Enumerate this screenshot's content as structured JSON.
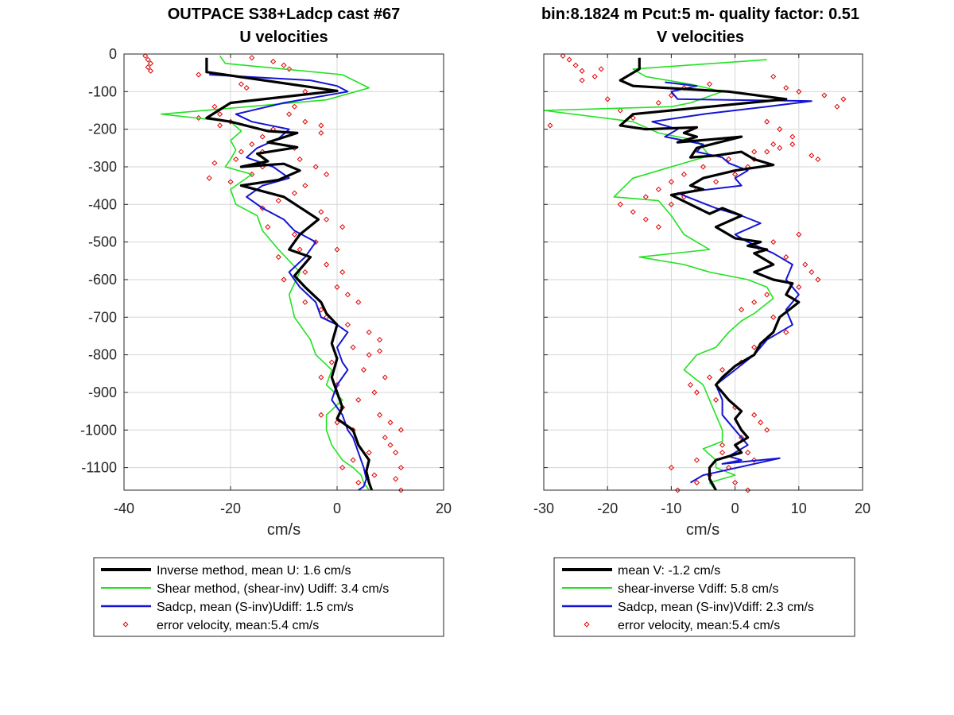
{
  "colors": {
    "inverse": "#000000",
    "shear": "#21e221",
    "sadcp": "#1414d2",
    "error": "#e00000",
    "grid": "#d6d6d6",
    "axis": "#262626"
  },
  "chart_data": [
    {
      "type": "line",
      "title": "OUTPACE S38+Ladcp cast #67",
      "subtitle": "U velocities",
      "xlabel": "cm/s",
      "ylabel": "",
      "xlim": [
        -40,
        20
      ],
      "ylim": [
        -1160,
        0
      ],
      "xticks": [
        -40,
        -20,
        0,
        20
      ],
      "yticks": [
        0,
        -100,
        -200,
        -300,
        -400,
        -500,
        -600,
        -700,
        -800,
        -900,
        -1000,
        -1100
      ],
      "grid": true,
      "legend_position": "below",
      "legend": [
        "Inverse method, mean U:  1.6 cm/s",
        "Shear method, (shear-inv)  Udiff:  3.4 cm/s",
        "Sadcp, mean (S-inv)Udiff: 1.5 cm/s",
        "error velocity, mean:5.4 cm/s"
      ],
      "series": [
        {
          "key": "inverse",
          "style": "line",
          "x": [
            -24.5,
            -24.5,
            0,
            -20,
            -24.5,
            -20,
            -13,
            -7.5,
            -13,
            -7.5,
            -15,
            -13,
            -18,
            -10,
            -7,
            -11,
            -18,
            -10,
            -3.5,
            -7,
            -9,
            -5,
            -8,
            -6,
            -3,
            -2,
            0,
            -1,
            0,
            -1,
            0,
            1,
            0,
            3,
            4,
            6,
            5.5,
            6,
            6.5
          ],
          "y": [
            -10,
            -48,
            -98,
            -130,
            -170,
            -180,
            -205,
            -210,
            -235,
            -248,
            -265,
            -285,
            -300,
            -292,
            -310,
            -335,
            -350,
            -380,
            -440,
            -480,
            -520,
            -540,
            -590,
            -620,
            -660,
            -690,
            -720,
            -770,
            -810,
            -860,
            -900,
            -940,
            -970,
            -1000,
            -1040,
            -1080,
            -1110,
            -1140,
            -1160
          ]
        },
        {
          "key": "shear",
          "style": "line",
          "x": [
            -22,
            -21,
            1,
            6,
            -2,
            -33,
            -20,
            -18,
            -20,
            -19,
            -20,
            -21,
            -16,
            -20,
            -19,
            -15,
            -14,
            -11,
            -7,
            -9,
            -8,
            -5,
            -4,
            -1,
            -2,
            1,
            -2,
            -2,
            -1,
            0,
            1,
            3,
            4.5,
            5,
            5.5,
            6
          ],
          "y": [
            -5,
            -25,
            -55,
            -90,
            -122,
            -160,
            -180,
            -205,
            -230,
            -255,
            -280,
            -300,
            -320,
            -360,
            -400,
            -430,
            -470,
            -520,
            -580,
            -640,
            -700,
            -760,
            -800,
            -840,
            -880,
            -920,
            -960,
            -1000,
            -1040,
            -1060,
            -1080,
            -1100,
            -1120,
            -1140,
            -1150,
            -1160
          ]
        },
        {
          "key": "sadcp",
          "style": "line",
          "x": [
            -24,
            -5,
            0,
            2,
            -10,
            -19,
            -16,
            -9,
            -11,
            -15,
            -17,
            -12,
            -9,
            -14,
            -17,
            -14,
            -10,
            -8,
            -4,
            -6,
            -9,
            -7,
            -4,
            -3,
            0,
            2,
            0,
            1,
            2,
            0,
            -1,
            1,
            2,
            3,
            4,
            5,
            5.5,
            5,
            4
          ],
          "y": [
            -55,
            -70,
            -85,
            -100,
            -130,
            -160,
            -180,
            -200,
            -225,
            -250,
            -275,
            -300,
            -330,
            -350,
            -380,
            -410,
            -440,
            -470,
            -500,
            -540,
            -580,
            -620,
            -660,
            -700,
            -720,
            -740,
            -780,
            -820,
            -840,
            -880,
            -920,
            -960,
            -1000,
            -1020,
            -1060,
            -1100,
            -1130,
            -1150,
            -1160
          ]
        },
        {
          "key": "error",
          "style": "markers",
          "x": [
            -36,
            -35.5,
            -35,
            -35.5,
            -35,
            -26,
            -16,
            -12,
            -10,
            -9,
            -18,
            -17,
            -6,
            -23,
            -22,
            -20,
            -8,
            -26,
            -22,
            -9,
            -12,
            -6,
            -3,
            -3,
            -14,
            -16,
            -18,
            -19,
            -14,
            -16,
            -23,
            -24,
            -20,
            -8,
            -14,
            -7,
            -4,
            -2,
            -6,
            -8,
            -11,
            -14,
            -3,
            -2,
            -13,
            -8,
            1,
            -4,
            -7,
            -11,
            0,
            -2,
            -6,
            -10,
            1,
            0,
            2,
            4,
            -3,
            -6,
            -2,
            2,
            6,
            8,
            8,
            6,
            3,
            -1,
            -3,
            0,
            5,
            9,
            7,
            4,
            1,
            -3,
            0,
            3,
            8,
            10,
            12,
            10,
            6,
            3,
            1,
            9,
            11,
            12,
            7,
            4,
            11,
            12
          ],
          "y": [
            -5,
            -15,
            -25,
            -35,
            -45,
            -55,
            -10,
            -20,
            -30,
            -40,
            -80,
            -90,
            -100,
            -140,
            -160,
            -180,
            -140,
            -170,
            -190,
            -160,
            -200,
            -180,
            -190,
            -210,
            -220,
            -240,
            -260,
            -280,
            -300,
            -320,
            -290,
            -330,
            -340,
            -250,
            -260,
            -280,
            -300,
            -320,
            -350,
            -370,
            -390,
            -410,
            -420,
            -440,
            -460,
            -480,
            -460,
            -500,
            -520,
            -540,
            -520,
            -560,
            -580,
            -600,
            -580,
            -620,
            -640,
            -660,
            -680,
            -660,
            -700,
            -720,
            -740,
            -760,
            -790,
            -800,
            -780,
            -820,
            -860,
            -880,
            -840,
            -860,
            -900,
            -920,
            -940,
            -960,
            -980,
            -1000,
            -960,
            -980,
            -1000,
            -1040,
            -1060,
            -1080,
            -1100,
            -1020,
            -1060,
            -1100,
            -1120,
            -1140,
            -1130,
            -1160
          ]
        }
      ]
    },
    {
      "type": "line",
      "title": "bin:8.1824 m  Pcut:5 m- quality factor:  0.51",
      "subtitle": "V velocities",
      "xlabel": "cm/s",
      "ylabel": "",
      "xlim": [
        -30,
        20
      ],
      "ylim": [
        -1160,
        0
      ],
      "xticks": [
        -30,
        -20,
        -10,
        0,
        10,
        20
      ],
      "yticks": [
        0,
        -100,
        -200,
        -300,
        -400,
        -500,
        -600,
        -700,
        -800,
        -900,
        -1000,
        -1100
      ],
      "grid": true,
      "legend_position": "below",
      "legend": [
        "mean V:  -1.2 cm/s",
        "shear-inverse Vdiff:  5.8 cm/s",
        "Sadcp, mean (S-inv)Vdiff: 2.3 cm/s",
        "error velocity, mean:5.4 cm/s"
      ],
      "series": [
        {
          "key": "inverse",
          "style": "line",
          "x": [
            -15,
            -15,
            -18,
            -16,
            -1,
            8,
            -4,
            -16,
            -18,
            -14,
            -6,
            -8,
            -6,
            -9,
            1,
            -6,
            -7,
            -3,
            1,
            3,
            6,
            0,
            -5,
            -7,
            -5,
            -10,
            -7,
            -4,
            -2,
            1,
            -3,
            0,
            4,
            2,
            5,
            3,
            5,
            6,
            3,
            6,
            9,
            8,
            10,
            7,
            6,
            4,
            3,
            0,
            -2,
            -3,
            -2,
            -1,
            1,
            0,
            1,
            2,
            0,
            1,
            -3,
            -4,
            -4,
            -3
          ],
          "y": [
            -10,
            -40,
            -70,
            -85,
            -100,
            -120,
            -140,
            -160,
            -190,
            -200,
            -195,
            -210,
            -220,
            -235,
            -220,
            -250,
            -275,
            -270,
            -260,
            -280,
            -295,
            -310,
            -330,
            -350,
            -360,
            -375,
            -400,
            -425,
            -410,
            -430,
            -460,
            -490,
            -500,
            -510,
            -520,
            -530,
            -550,
            -560,
            -580,
            -600,
            -610,
            -640,
            -660,
            -700,
            -740,
            -770,
            -800,
            -830,
            -860,
            -880,
            -900,
            -920,
            -950,
            -970,
            -1000,
            -1020,
            -1040,
            -1060,
            -1080,
            -1100,
            -1130,
            -1160
          ]
        },
        {
          "key": "shear",
          "style": "line",
          "x": [
            5,
            -16,
            -14,
            -7,
            -2,
            -7,
            -10,
            -30,
            -16,
            -12,
            -6,
            -4,
            -16,
            -19,
            -12,
            -10,
            -8,
            -4,
            -15,
            -8,
            -4,
            2,
            5,
            6,
            3,
            1,
            -1,
            -3,
            -6,
            -8,
            -5,
            -4,
            -3,
            -2,
            -2,
            -5,
            -3,
            -3,
            0,
            -4,
            -3
          ],
          "y": [
            -15,
            -40,
            -60,
            -80,
            -100,
            -130,
            -140,
            -150,
            -180,
            -210,
            -230,
            -270,
            -330,
            -380,
            -390,
            -430,
            -480,
            -520,
            -540,
            -560,
            -580,
            -600,
            -620,
            -650,
            -690,
            -710,
            -740,
            -780,
            -800,
            -840,
            -880,
            -920,
            -960,
            -1000,
            -1030,
            -1050,
            -1080,
            -1100,
            -1120,
            -1140,
            -1160
          ]
        },
        {
          "key": "sadcp",
          "style": "line",
          "x": [
            -11,
            -6,
            -10,
            -9,
            12,
            5,
            -5,
            -13,
            -9,
            -11,
            -5,
            -6,
            -2,
            -1,
            2,
            0,
            1,
            -9,
            -6,
            -3,
            1,
            4,
            0,
            2,
            6,
            9,
            8,
            10,
            8,
            9,
            5,
            3,
            0,
            -3,
            -2,
            -2,
            0,
            1,
            2,
            0,
            -1,
            1,
            -2,
            7,
            -5,
            -7
          ],
          "y": [
            -75,
            -85,
            -100,
            -120,
            -125,
            -140,
            -160,
            -180,
            -200,
            -220,
            -240,
            -260,
            -275,
            -290,
            -310,
            -330,
            -350,
            -370,
            -390,
            -410,
            -430,
            -450,
            -480,
            -500,
            -530,
            -560,
            -600,
            -640,
            -680,
            -720,
            -760,
            -800,
            -840,
            -880,
            -920,
            -960,
            -1000,
            -1020,
            -1040,
            -1060,
            -1070,
            -1080,
            -1090,
            -1075,
            -1120,
            -1140
          ]
        },
        {
          "key": "error",
          "style": "markers",
          "x": [
            -27,
            -26,
            -25,
            -24,
            -24,
            -22,
            -21,
            -29,
            -20,
            -18,
            -16,
            -12,
            -10,
            -8,
            -4,
            6,
            8,
            10,
            14,
            16,
            17,
            5,
            7,
            9,
            6,
            3,
            -1,
            -5,
            -8,
            -10,
            -12,
            -14,
            -18,
            -16,
            -14,
            -12,
            -10,
            -8,
            -6,
            -3,
            0,
            2,
            3,
            5,
            7,
            9,
            12,
            13,
            10,
            6,
            4,
            8,
            11,
            12,
            13,
            10,
            5,
            3,
            1,
            6,
            8,
            3,
            1,
            -2,
            -4,
            -7,
            -6,
            -3,
            0,
            3,
            4,
            5,
            1,
            -2,
            2,
            3,
            -1,
            -4,
            -6,
            -9,
            -10,
            -6,
            -2,
            0,
            2
          ],
          "y": [
            -5,
            -15,
            -30,
            -45,
            -70,
            -60,
            -40,
            -190,
            -120,
            -150,
            -170,
            -130,
            -110,
            -90,
            -80,
            -60,
            -90,
            -100,
            -110,
            -140,
            -120,
            -180,
            -200,
            -220,
            -240,
            -260,
            -280,
            -300,
            -320,
            -340,
            -360,
            -380,
            -400,
            -420,
            -440,
            -460,
            -400,
            -380,
            -360,
            -340,
            -320,
            -300,
            -280,
            -260,
            -250,
            -240,
            -270,
            -280,
            -480,
            -500,
            -520,
            -540,
            -560,
            -580,
            -600,
            -620,
            -640,
            -660,
            -680,
            -700,
            -740,
            -780,
            -820,
            -840,
            -860,
            -880,
            -900,
            -920,
            -940,
            -960,
            -980,
            -1000,
            -1020,
            -1040,
            -1060,
            -1080,
            -1100,
            -1120,
            -1140,
            -1160,
            -1100,
            -1080,
            -1060,
            -1140,
            -1160
          ]
        }
      ]
    }
  ]
}
